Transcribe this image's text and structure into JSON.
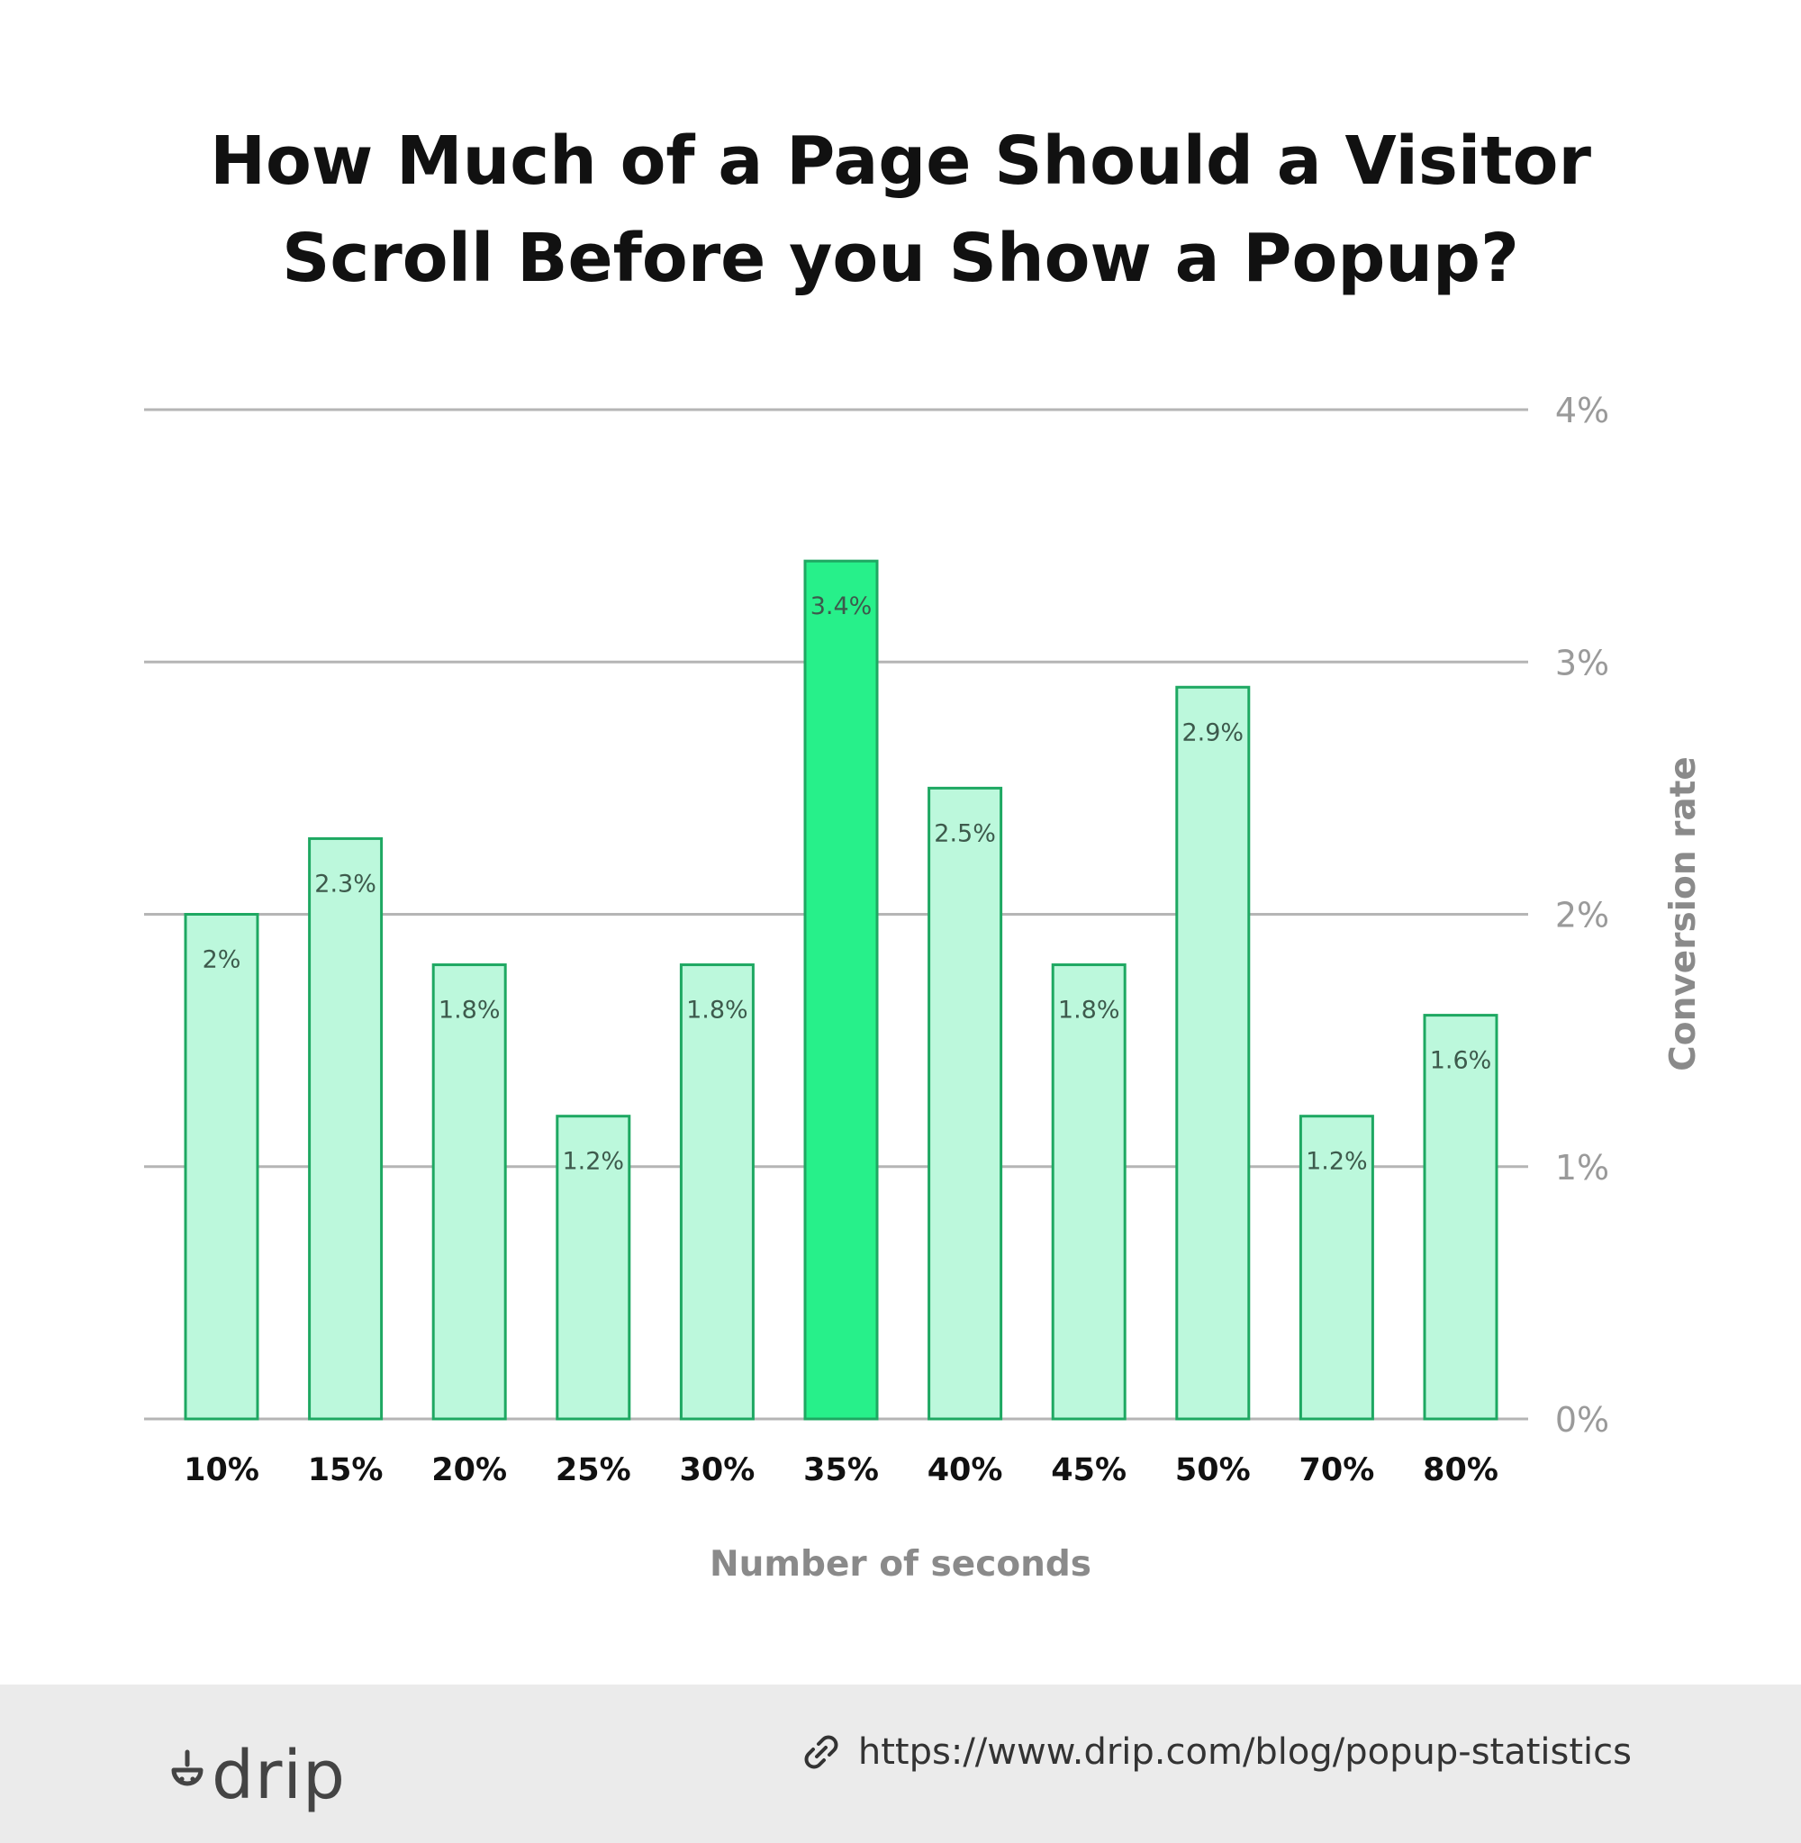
{
  "title_lines": [
    "How Much of a Page Should a Visitor",
    "Scroll Before you Show a Popup?"
  ],
  "colors": {
    "bar_fill": "#bcf8dc",
    "bar_stroke": "#1ea862",
    "highlight_fill": "#27f08a",
    "grid": "#b5b5b5",
    "tick": "#9a9a9a",
    "axis_title": "#8a8a8a"
  },
  "chart_data": {
    "type": "bar",
    "categories": [
      "10%",
      "15%",
      "20%",
      "25%",
      "30%",
      "35%",
      "40%",
      "45%",
      "50%",
      "70%",
      "80%"
    ],
    "values": [
      2.0,
      2.3,
      1.8,
      1.2,
      1.8,
      3.4,
      2.5,
      1.8,
      2.9,
      1.2,
      1.6
    ],
    "data_labels": [
      "2%",
      "2.3%",
      "1.8%",
      "1.2%",
      "1.8%",
      "3.4%",
      "2.5%",
      "1.8%",
      "2.9%",
      "1.2%",
      "1.6%"
    ],
    "highlight_category": "35%",
    "xlabel": "Number of seconds",
    "ylabel": "Conversion rate",
    "ylim": [
      0,
      4
    ],
    "yticks": [
      0,
      1,
      2,
      3,
      4
    ],
    "ytick_labels": [
      "0%",
      "1%",
      "2%",
      "3%",
      "4%"
    ],
    "y_axis_side": "right",
    "grid": true
  },
  "footer": {
    "brand": "drip",
    "logo_icon": "drip-logo-icon",
    "link_icon": "link-icon",
    "source_url": "https://www.drip.com/blog/popup-statistics"
  }
}
